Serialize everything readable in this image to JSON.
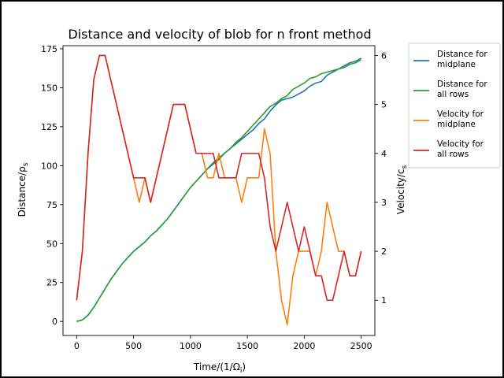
{
  "chart_data": {
    "type": "line",
    "title": "Distance and velocity of blob for n front method",
    "xlabel": "Time/(1/Ω",
    "xlabel_sub": "i",
    "xlabel_close": ")",
    "ylabel_left": "Distance/ρ",
    "ylabel_left_sub": "s",
    "ylabel_right": "Velocity/c",
    "ylabel_right_sub": "s",
    "xlim": [
      -120,
      2620
    ],
    "ylim_left": [
      -9,
      177
    ],
    "ylim_right": [
      0.28,
      6.2
    ],
    "x_ticks": [
      0,
      500,
      1000,
      1500,
      2000,
      2500
    ],
    "y_left_ticks": [
      0,
      25,
      50,
      75,
      100,
      125,
      150,
      175
    ],
    "y_right_ticks": [
      1,
      2,
      3,
      4,
      5,
      6
    ],
    "grid": false,
    "legend_position": "outside-right",
    "series": [
      {
        "name": "Distance for\nmidplane",
        "axis": "left",
        "color": "#1f77b4",
        "x": [
          0,
          50,
          100,
          150,
          200,
          250,
          300,
          350,
          400,
          450,
          500,
          550,
          600,
          650,
          700,
          750,
          800,
          850,
          900,
          950,
          1000,
          1050,
          1100,
          1150,
          1200,
          1250,
          1300,
          1350,
          1400,
          1450,
          1500,
          1550,
          1600,
          1650,
          1700,
          1750,
          1800,
          1850,
          1900,
          1950,
          2000,
          2050,
          2100,
          2150,
          2200,
          2250,
          2300,
          2350,
          2400,
          2450,
          2500
        ],
        "y": [
          0,
          1,
          4,
          9,
          15,
          21,
          27,
          32,
          37,
          41,
          45,
          48,
          51,
          55,
          58,
          62,
          66,
          71,
          76,
          81,
          86,
          90,
          94,
          98,
          101,
          104,
          108,
          111,
          114,
          117,
          120,
          123,
          127,
          130,
          135,
          139,
          142,
          143,
          144,
          146,
          148,
          151,
          153,
          154,
          158,
          160,
          162,
          164,
          166,
          167,
          169
        ]
      },
      {
        "name": "Distance for\nall rows",
        "axis": "left",
        "color": "#2ca02c",
        "x": [
          0,
          50,
          100,
          150,
          200,
          250,
          300,
          350,
          400,
          450,
          500,
          550,
          600,
          650,
          700,
          750,
          800,
          850,
          900,
          950,
          1000,
          1050,
          1100,
          1150,
          1200,
          1250,
          1300,
          1350,
          1400,
          1450,
          1500,
          1550,
          1600,
          1650,
          1700,
          1750,
          1800,
          1850,
          1900,
          1950,
          2000,
          2050,
          2100,
          2150,
          2200,
          2250,
          2300,
          2350,
          2400,
          2450,
          2500
        ],
        "y": [
          0,
          1,
          4,
          9,
          15,
          21,
          27,
          32,
          37,
          41,
          45,
          48,
          51,
          55,
          58,
          62,
          66,
          71,
          76,
          81,
          86,
          90,
          94,
          98,
          102,
          105,
          108,
          111,
          115,
          118,
          122,
          126,
          130,
          134,
          138,
          140,
          143,
          145,
          149,
          151,
          153,
          156,
          157,
          159,
          160,
          161,
          162,
          163,
          165,
          166,
          168
        ]
      },
      {
        "name": "Velocity for\nmidplane",
        "axis": "right",
        "color": "#ff7f0e",
        "x": [
          0,
          50,
          100,
          150,
          200,
          250,
          300,
          350,
          400,
          450,
          500,
          550,
          600,
          650,
          700,
          750,
          800,
          850,
          900,
          950,
          1000,
          1050,
          1100,
          1150,
          1200,
          1250,
          1300,
          1350,
          1400,
          1450,
          1500,
          1550,
          1600,
          1650,
          1700,
          1750,
          1800,
          1850,
          1900,
          1950,
          2000,
          2050,
          2100,
          2150,
          2200,
          2250,
          2300,
          2350,
          2400,
          2450,
          2500
        ],
        "y": [
          1,
          2,
          4,
          5.5,
          6,
          6,
          5.5,
          5,
          4.5,
          4,
          3.5,
          3,
          3.5,
          3,
          3.5,
          4,
          4.5,
          5,
          5,
          5,
          4.5,
          4,
          4,
          3.5,
          3.5,
          4,
          3.5,
          3.5,
          3.5,
          3,
          3.5,
          3.5,
          3.5,
          4.5,
          4,
          2,
          1,
          0.5,
          1.5,
          2,
          2,
          2,
          1.5,
          2,
          3,
          2.5,
          2,
          2,
          1.5,
          1.5,
          2
        ]
      },
      {
        "name": "Velocity for\nall rows",
        "axis": "right",
        "color": "#d62728",
        "x": [
          0,
          50,
          100,
          150,
          200,
          250,
          300,
          350,
          400,
          450,
          500,
          550,
          600,
          650,
          700,
          750,
          800,
          850,
          900,
          950,
          1000,
          1050,
          1100,
          1150,
          1200,
          1250,
          1300,
          1350,
          1400,
          1450,
          1500,
          1550,
          1600,
          1650,
          1700,
          1750,
          1800,
          1850,
          1900,
          1950,
          2000,
          2050,
          2100,
          2150,
          2200,
          2250,
          2300,
          2350,
          2400,
          2450,
          2500
        ],
        "y": [
          1,
          2,
          4,
          5.5,
          6,
          6,
          5.5,
          5,
          4.5,
          4,
          3.5,
          3.5,
          3.5,
          3,
          3.5,
          4,
          4.5,
          5,
          5,
          5,
          4.5,
          4,
          4,
          4,
          4,
          3.5,
          3.5,
          3.5,
          3.5,
          4,
          4,
          4,
          4,
          3.5,
          2.5,
          2,
          2.5,
          3,
          2.5,
          2,
          2.5,
          2,
          1.5,
          1.5,
          1,
          1,
          1.5,
          2,
          1.5,
          1.5,
          2
        ]
      }
    ]
  }
}
